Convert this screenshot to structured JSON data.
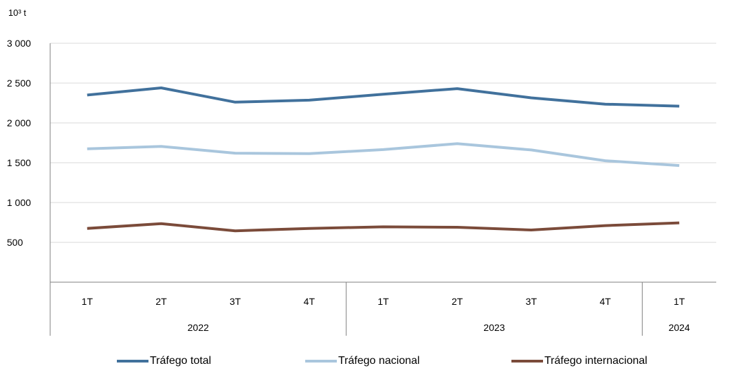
{
  "chart_data": {
    "type": "line",
    "unit": "10³ t",
    "categories": [
      "1T",
      "2T",
      "3T",
      "4T",
      "1T",
      "2T",
      "3T",
      "4T",
      "1T"
    ],
    "years": [
      {
        "label": "2022",
        "span": 4
      },
      {
        "label": "2023",
        "span": 4
      },
      {
        "label": "2024",
        "span": 1
      }
    ],
    "y_ticks": [
      "3 000",
      "2 500",
      "2 000",
      "1 500",
      "1 000",
      "500"
    ],
    "ylim": [
      0,
      3000
    ],
    "grid": true,
    "legend_position": "bottom",
    "series": [
      {
        "name": "Tráfego total",
        "color": "#41719C",
        "values": [
          2350,
          2440,
          2260,
          2285,
          2360,
          2430,
          2315,
          2235,
          2210
        ]
      },
      {
        "name": "Tráfego nacional",
        "color": "#A9C6DD",
        "values": [
          1675,
          1705,
          1620,
          1615,
          1665,
          1740,
          1660,
          1525,
          1465
        ]
      },
      {
        "name": "Tráfego internacional",
        "color": "#7B4B3A",
        "values": [
          675,
          735,
          645,
          675,
          695,
          690,
          655,
          710,
          745
        ]
      }
    ]
  }
}
